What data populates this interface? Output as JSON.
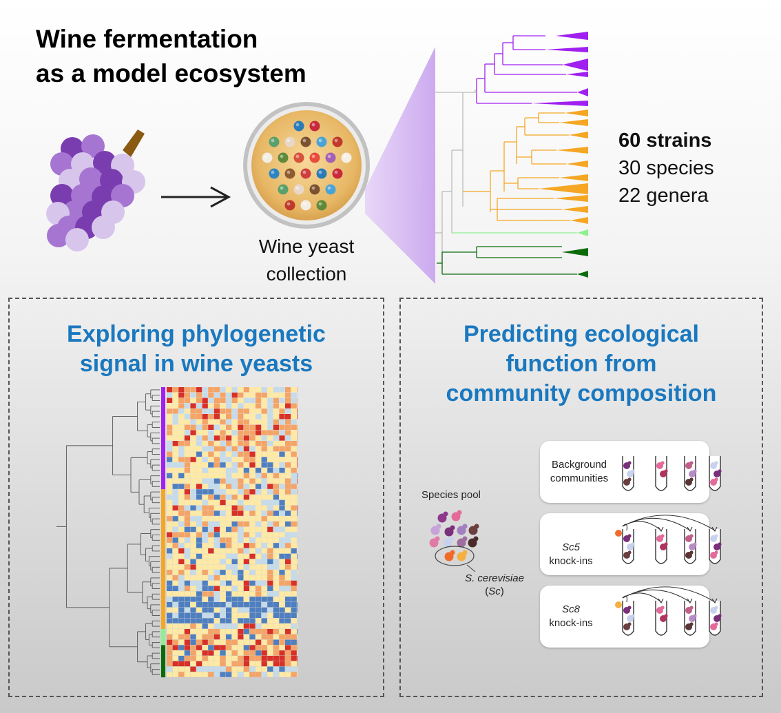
{
  "header": {
    "title_line1": "Wine fermentation",
    "title_line2": "as a model ecosystem"
  },
  "collection": {
    "label_line1": "Wine yeast",
    "label_line2": "collection"
  },
  "stats": {
    "strains": "60 strains",
    "species": "30 species",
    "genera": "22 genera"
  },
  "left_panel": {
    "title_line1": "Exploring phylogenetic",
    "title_line2": "signal in wine yeasts"
  },
  "right_panel": {
    "title_line1": "Predicting ecological",
    "title_line2": "function from",
    "title_line3": "community composition",
    "species_pool_label": "Species pool",
    "sc_label_line1": "S. cerevisiae",
    "sc_label_line2": "(Sc)",
    "background_line1": "Background",
    "background_line2": "communities",
    "sc5_line1": "Sc5",
    "sc5_line2": "knock-ins",
    "sc8_line1": "Sc8",
    "sc8_line2": "knock-ins"
  },
  "colors": {
    "grape_dark": "#7a3db0",
    "grape_mid": "#a675d1",
    "grape_light": "#d7c5ec",
    "clade_purple": "#a020f0",
    "clade_orange": "#f5a623",
    "clade_lightgreen": "#8ff08f",
    "clade_darkgreen": "#0b6b0b",
    "title_blue": "#1a78bf",
    "heat_red": "#d73027",
    "heat_orange": "#f4a466",
    "heat_yellow": "#fee9a5",
    "heat_lightblue": "#c6dbe9",
    "heat_blue": "#4f7fbf"
  },
  "icons": [
    "grape-icon",
    "arrow-right-icon",
    "petri-dish-icon",
    "phylogenetic-tree-icon",
    "heatmap-icon",
    "test-tube-icon",
    "yeast-cell-icon"
  ]
}
